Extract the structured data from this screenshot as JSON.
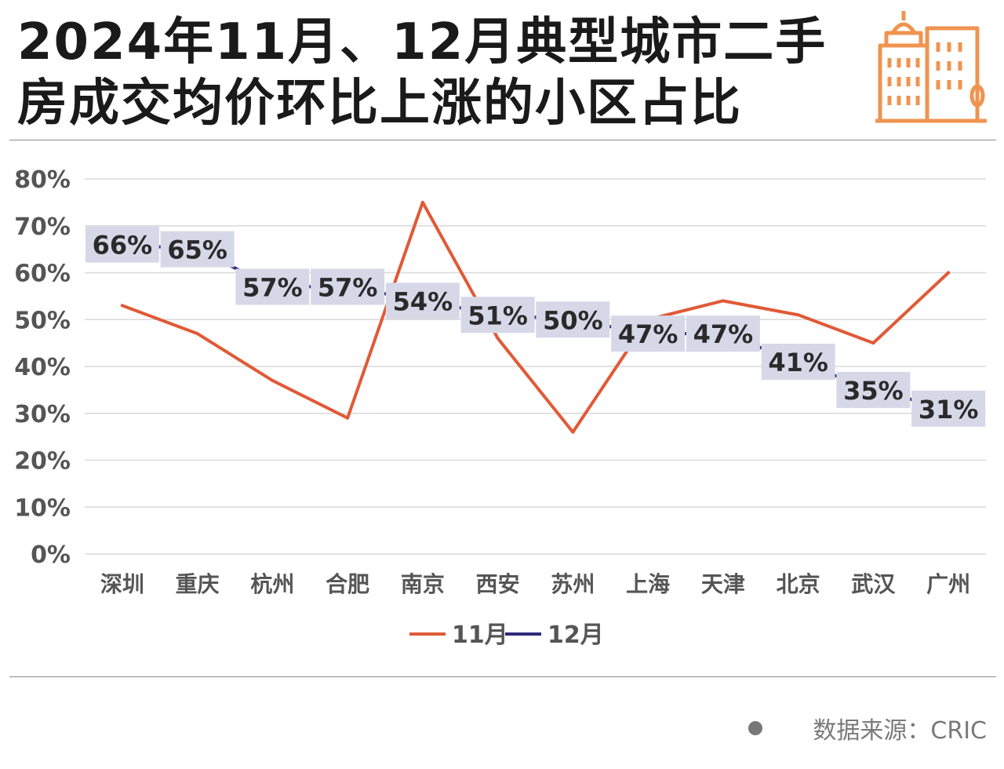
{
  "title": {
    "line1": "2024年11月、12月典型城市二手",
    "line2": "房成交均价环比上涨的小区占比"
  },
  "source": "数据来源：CRIC",
  "colors": {
    "series_11": "#e05a36",
    "series_12": "#2d2a7a",
    "label_bg": "#d6d8e8",
    "grid": "#d9d9d9",
    "axis_text": "#555555",
    "logo": "#ef9450"
  },
  "logo_icon": "building-icon",
  "chart_data": {
    "type": "line",
    "categories": [
      "深圳",
      "重庆",
      "杭州",
      "合肥",
      "南京",
      "西安",
      "苏州",
      "上海",
      "天津",
      "北京",
      "武汉",
      "广州"
    ],
    "y_ticks": [
      "0%",
      "10%",
      "20%",
      "30%",
      "40%",
      "50%",
      "60%",
      "70%",
      "80%"
    ],
    "ylim": [
      0,
      80
    ],
    "grid": true,
    "legend_position": "bottom",
    "series": [
      {
        "name": "11月",
        "values": [
          53,
          47,
          37,
          29,
          75,
          46,
          26,
          50,
          54,
          51,
          45,
          60
        ],
        "show_labels": false
      },
      {
        "name": "12月",
        "values": [
          66,
          65,
          57,
          57,
          54,
          51,
          50,
          47,
          47,
          41,
          35,
          31
        ],
        "show_labels": true,
        "labels": [
          "66%",
          "65%",
          "57%",
          "57%",
          "54%",
          "51%",
          "50%",
          "47%",
          "47%",
          "41%",
          "35%",
          "31%"
        ]
      }
    ]
  }
}
